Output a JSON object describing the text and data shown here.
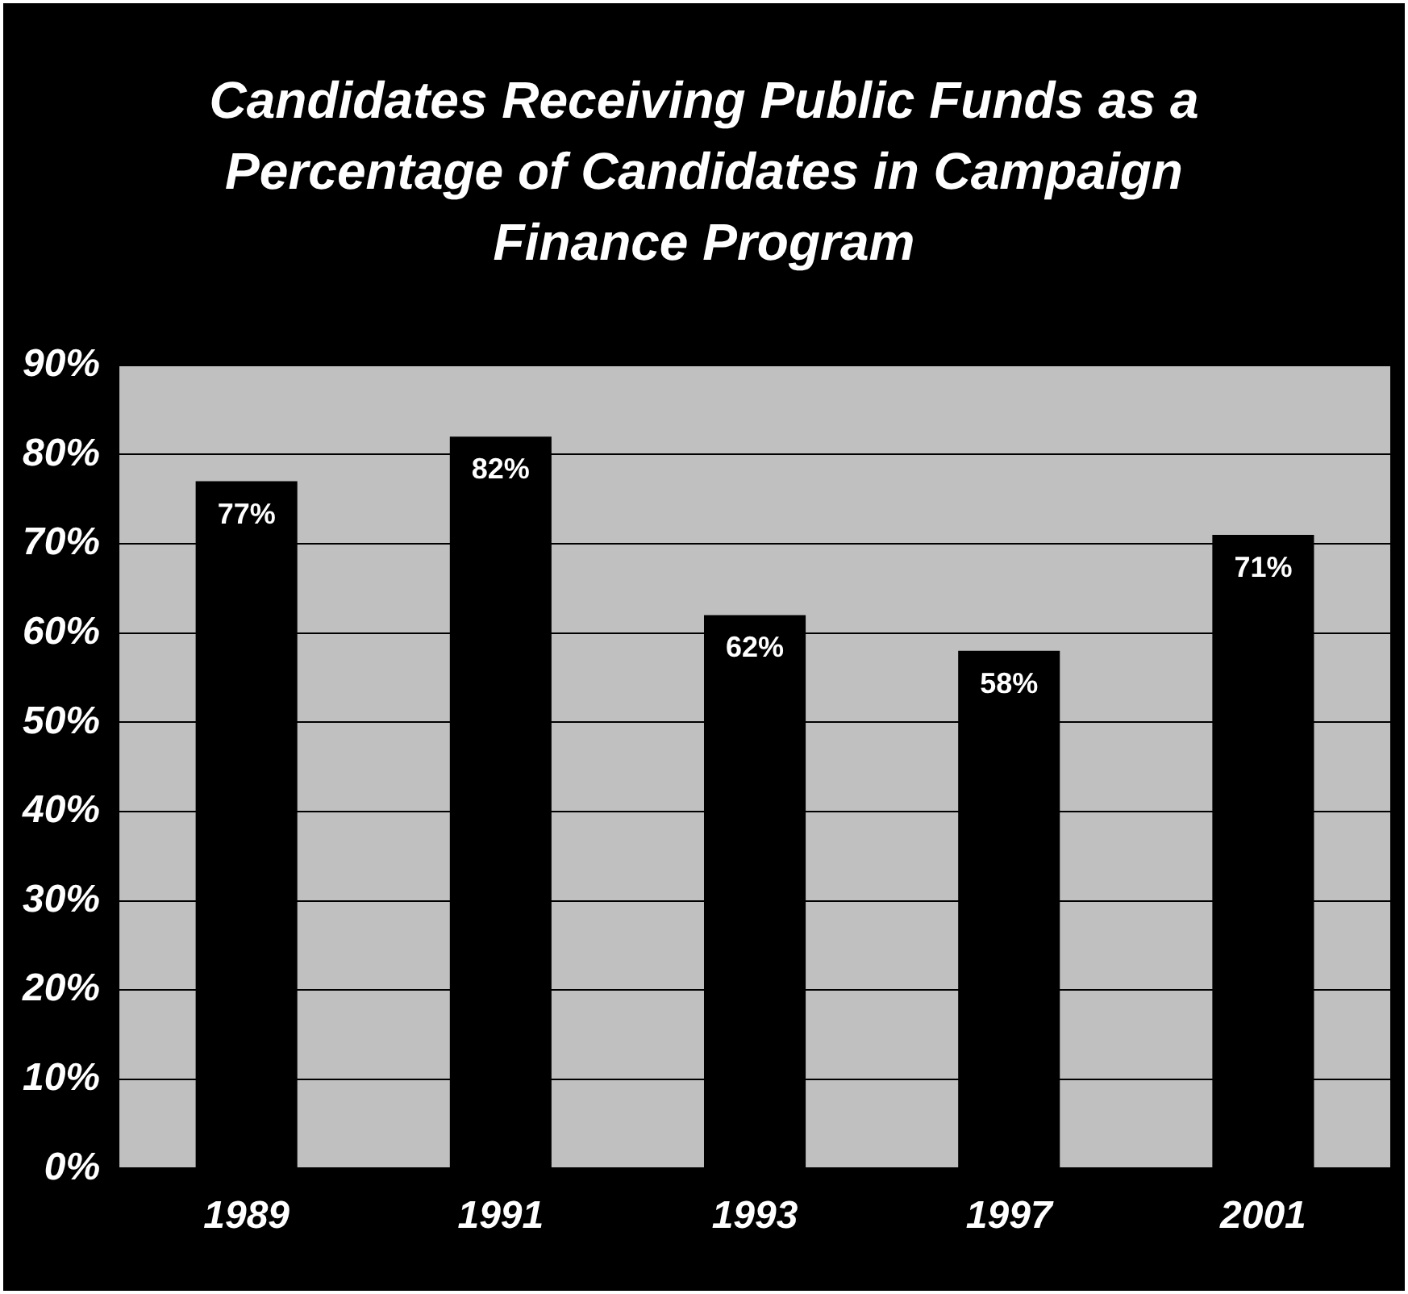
{
  "chart_data": {
    "type": "bar",
    "title": "Candidates Receiving Public Funds as a Percentage of Candidates in Campaign Finance Program",
    "categories": [
      "1989",
      "1991",
      "1993",
      "1997",
      "2001"
    ],
    "values": [
      77,
      82,
      62,
      58,
      71
    ],
    "value_labels": [
      "77%",
      "82%",
      "62%",
      "58%",
      "71%"
    ],
    "color": "#000000",
    "ylim": [
      0,
      90
    ],
    "yticks": [
      {
        "value": 0,
        "label": "0%"
      },
      {
        "value": 10,
        "label": "10%"
      },
      {
        "value": 20,
        "label": "20%"
      },
      {
        "value": 30,
        "label": "30%"
      },
      {
        "value": 40,
        "label": "40%"
      },
      {
        "value": 50,
        "label": "50%"
      },
      {
        "value": 60,
        "label": "60%"
      },
      {
        "value": 70,
        "label": "70%"
      },
      {
        "value": 80,
        "label": "80%"
      },
      {
        "value": 90,
        "label": "90%"
      }
    ],
    "grid": "y",
    "legend": false
  }
}
